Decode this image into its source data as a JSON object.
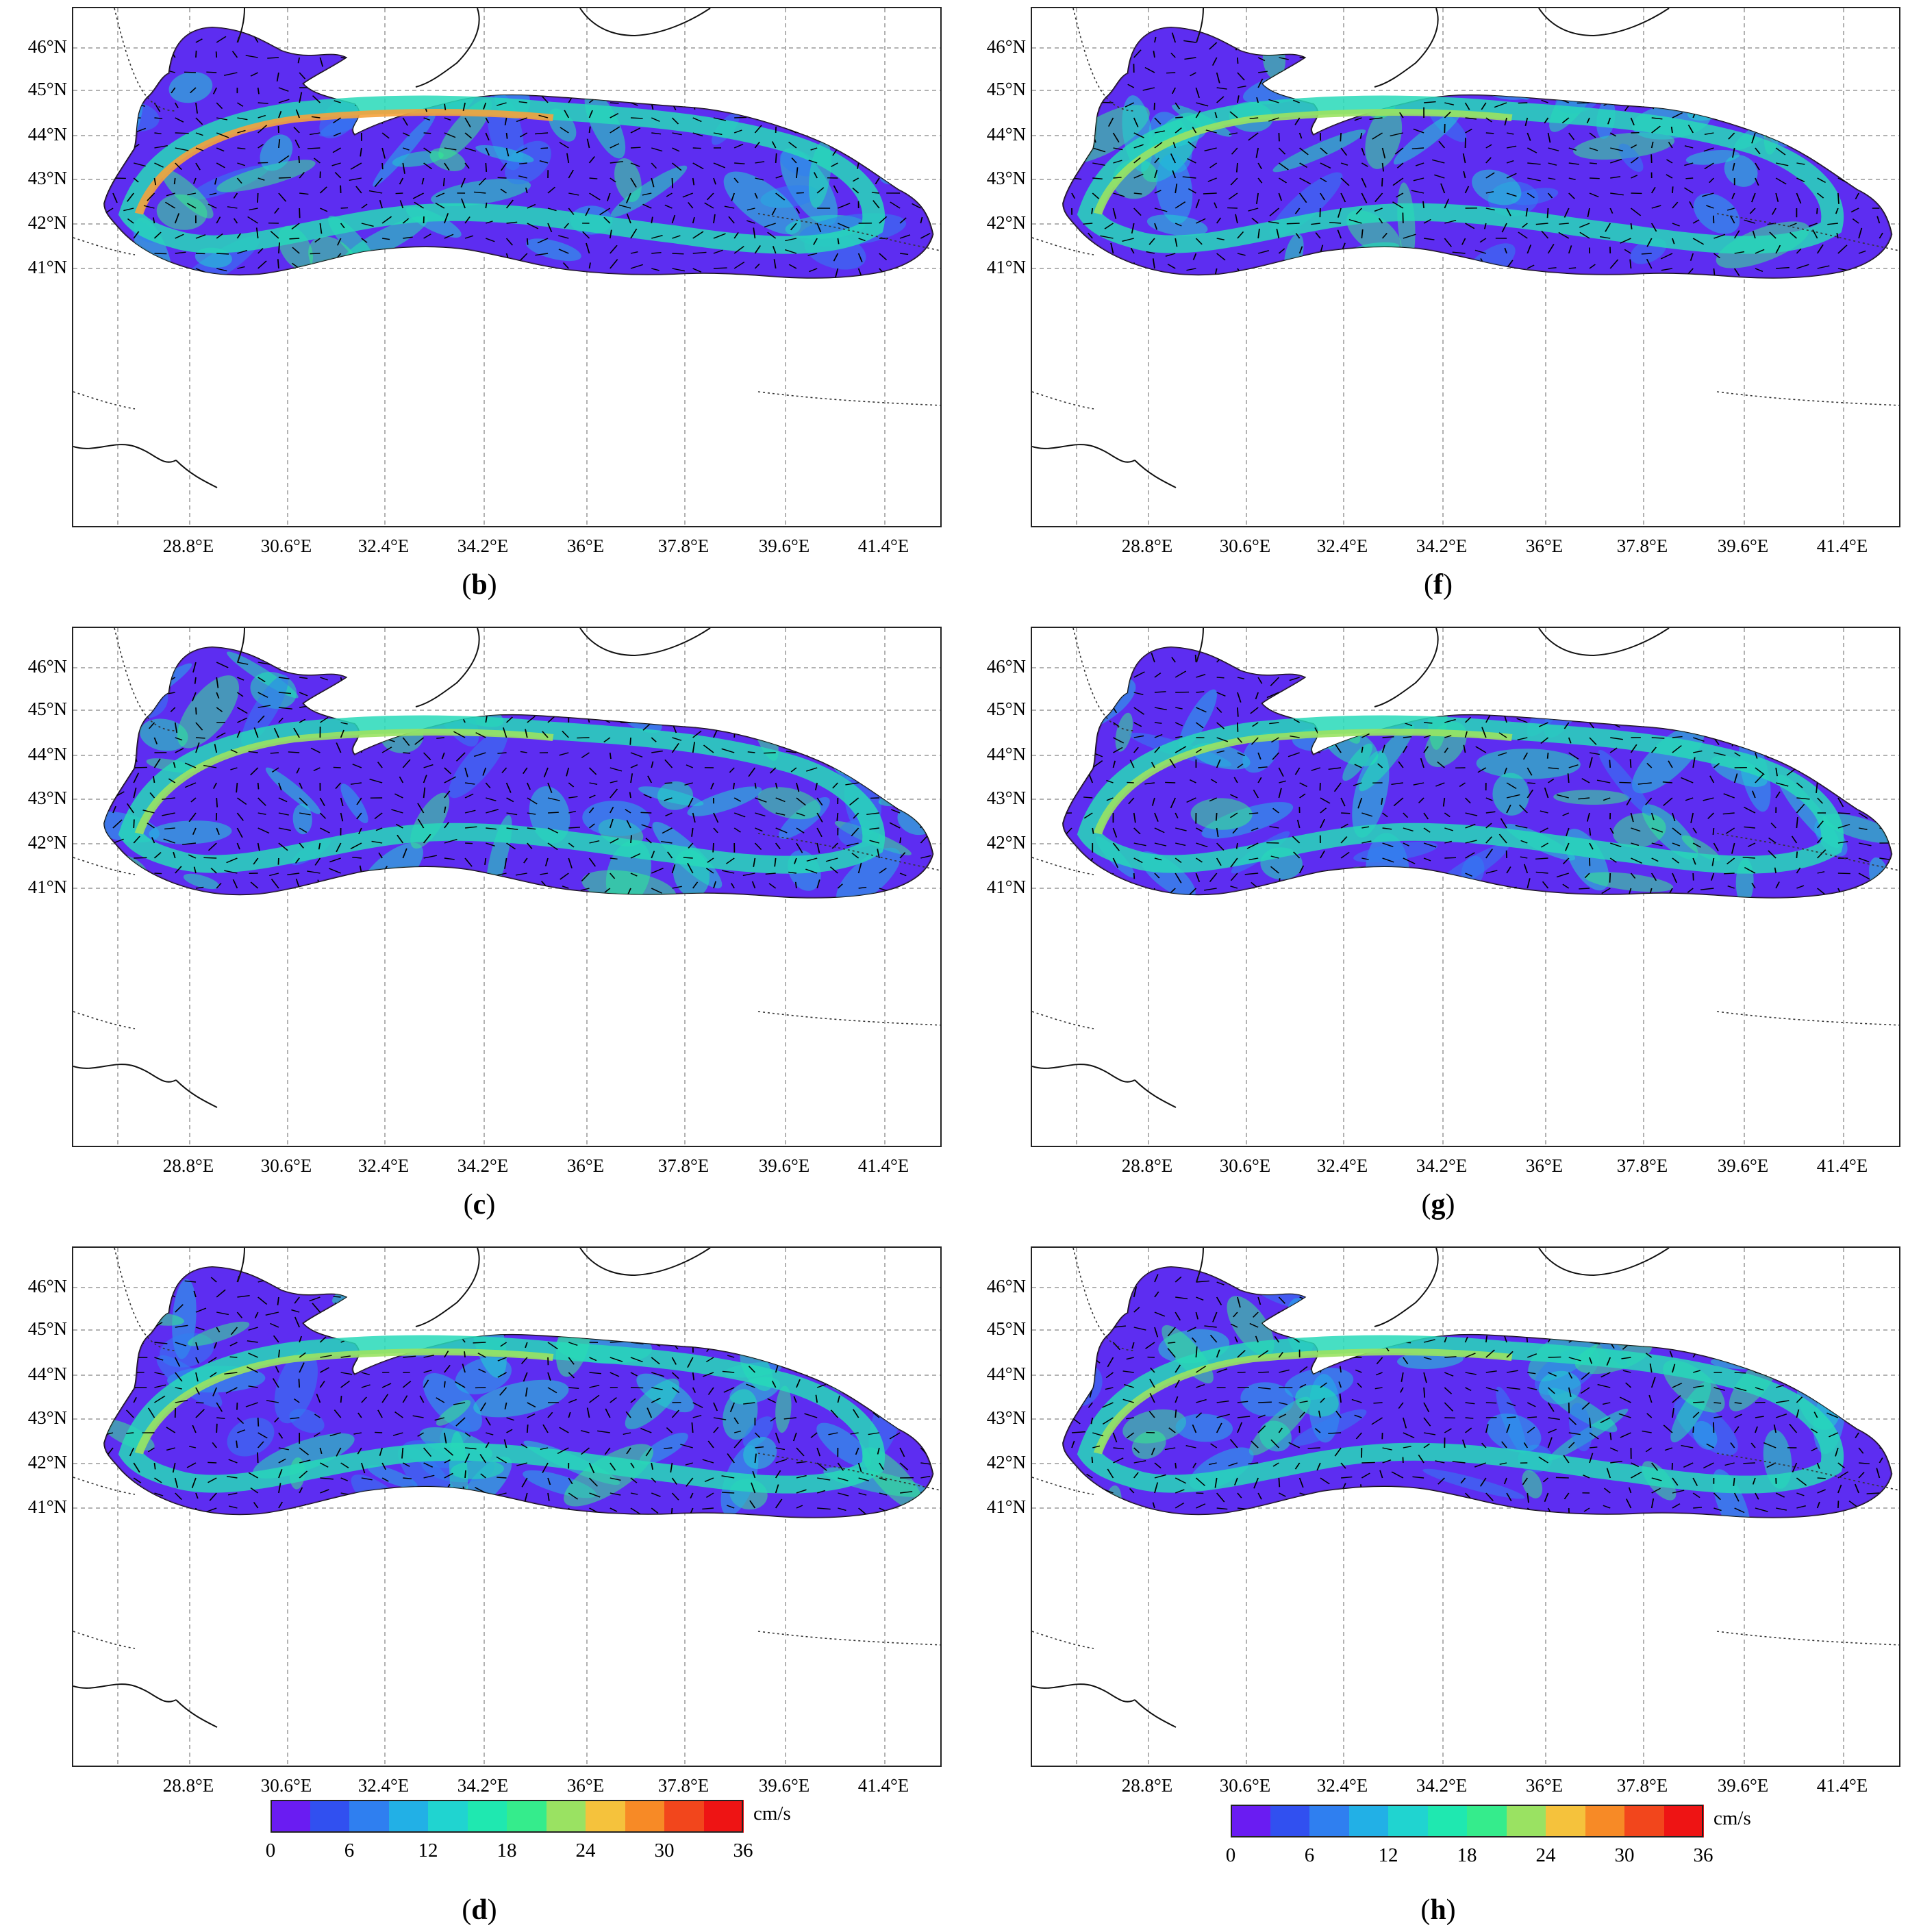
{
  "panels": [
    {
      "id": "b",
      "caption": "b",
      "column": 0,
      "row": 0
    },
    {
      "id": "f",
      "caption": "f",
      "column": 1,
      "row": 0
    },
    {
      "id": "c",
      "caption": "c",
      "column": 0,
      "row": 1
    },
    {
      "id": "g",
      "caption": "g",
      "column": 1,
      "row": 1
    },
    {
      "id": "d",
      "caption": "d",
      "column": 0,
      "row": 2
    },
    {
      "id": "h",
      "caption": "h",
      "column": 1,
      "row": 2
    }
  ],
  "lat_labels": [
    "46°N",
    "45°N",
    "44°N",
    "43°N",
    "42°N",
    "41°N"
  ],
  "lon_labels": [
    "28.8°E",
    "30.6°E",
    "32.4°E",
    "34.2°E",
    "36°E",
    "37.8°E",
    "39.6°E",
    "41.4°E"
  ],
  "colorbar": {
    "unit": "cm/s",
    "ticks": [
      "0",
      "6",
      "12",
      "18",
      "24",
      "30",
      "36"
    ],
    "colors": [
      "#6a1cf2",
      "#3150f0",
      "#2f7ff0",
      "#22b0e6",
      "#20d4d0",
      "#1fe8b0",
      "#35ec8c",
      "#9ae262",
      "#f5c23c",
      "#f78a26",
      "#f2461c",
      "#ee1414"
    ]
  }
}
